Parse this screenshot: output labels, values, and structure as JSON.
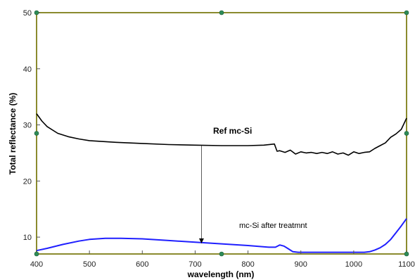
{
  "chart_data": {
    "type": "line",
    "xlabel": "wavelength (nm)",
    "ylabel": "Total reflectance (%)",
    "xlim": [
      400,
      1100
    ],
    "ylim": [
      7,
      50
    ],
    "x_ticks": [
      400,
      500,
      600,
      700,
      800,
      900,
      1000,
      1100
    ],
    "y_ticks": [
      10,
      20,
      30,
      40,
      50
    ],
    "grid": false,
    "frame_color": "#8b8b2e",
    "handle_color": "#2e8b57",
    "series": [
      {
        "label": "Ref mc-Si",
        "color": "#000000",
        "x": [
          400,
          410,
          420,
          440,
          460,
          480,
          500,
          550,
          600,
          650,
          700,
          750,
          800,
          830,
          850,
          855,
          860,
          870,
          880,
          890,
          900,
          910,
          920,
          930,
          940,
          950,
          960,
          970,
          980,
          990,
          1000,
          1010,
          1020,
          1030,
          1040,
          1050,
          1060,
          1070,
          1080,
          1090,
          1100
        ],
        "y": [
          32.0,
          30.7,
          29.7,
          28.5,
          27.9,
          27.5,
          27.2,
          26.9,
          26.7,
          26.5,
          26.4,
          26.3,
          26.3,
          26.4,
          26.6,
          25.3,
          25.4,
          25.1,
          25.5,
          24.8,
          25.2,
          25.0,
          25.1,
          24.9,
          25.1,
          24.9,
          25.2,
          24.8,
          25.0,
          24.6,
          25.2,
          24.9,
          25.1,
          25.2,
          25.8,
          26.3,
          26.8,
          27.8,
          28.4,
          29.2,
          31.2
        ]
      },
      {
        "label": "mc-Si after treatmnt",
        "color": "#1f1fff",
        "x": [
          400,
          420,
          450,
          480,
          500,
          530,
          560,
          600,
          650,
          700,
          750,
          800,
          840,
          852,
          860,
          868,
          875,
          885,
          895,
          920,
          950,
          980,
          1000,
          1020,
          1030,
          1040,
          1050,
          1060,
          1070,
          1080,
          1090,
          1100
        ],
        "y": [
          7.6,
          8.0,
          8.7,
          9.3,
          9.6,
          9.8,
          9.8,
          9.7,
          9.4,
          9.1,
          8.8,
          8.5,
          8.2,
          8.2,
          8.6,
          8.4,
          8.0,
          7.4,
          7.3,
          7.3,
          7.3,
          7.3,
          7.3,
          7.3,
          7.4,
          7.7,
          8.1,
          8.7,
          9.6,
          10.8,
          12.0,
          13.3
        ]
      }
    ],
    "annotations": {
      "ref_label": "Ref mc-Si",
      "treated_label": "mc-Si after treatmnt",
      "arrow": {
        "x": 712,
        "y_from": 26.3,
        "y_to": 8.9
      }
    }
  }
}
